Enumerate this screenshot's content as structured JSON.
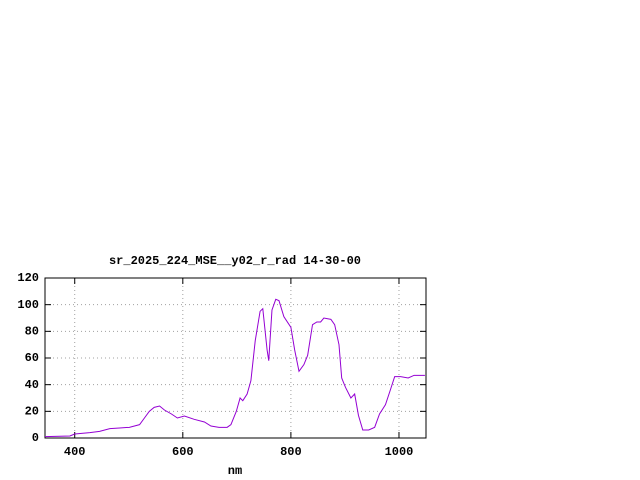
{
  "chart_data": {
    "type": "line",
    "title": "sr_2025_224_MSE__y02_r_rad 14-30-00",
    "x_label": "nm",
    "x": [
      345,
      391,
      400,
      428,
      446,
      465,
      483,
      501,
      520,
      529,
      538,
      547,
      557,
      566,
      579,
      590,
      603,
      621,
      640,
      652,
      667,
      682,
      689,
      699,
      706,
      711,
      719,
      726,
      734,
      743,
      748,
      756,
      759,
      765,
      772,
      778,
      787,
      800,
      807,
      815,
      824,
      831,
      840,
      848,
      855,
      861,
      874,
      881,
      889,
      894,
      901,
      911,
      918,
      925,
      933,
      944,
      955,
      964,
      975,
      984,
      992,
      1003,
      1017,
      1028,
      1048
    ],
    "series": [
      {
        "name": "sr_2025_224_MSE__y02_r_rad",
        "color": "#9400d3",
        "values": [
          1,
          1.5,
          3,
          4,
          5,
          7,
          7.5,
          8,
          10,
          15,
          20,
          23,
          24,
          21,
          18,
          15,
          16.5,
          14,
          12,
          9,
          8,
          8,
          10,
          20,
          30,
          28,
          33,
          43,
          73,
          95,
          97,
          66,
          58,
          96,
          104,
          103,
          91,
          83,
          66,
          50,
          55,
          62,
          85,
          87,
          87,
          90,
          89,
          85,
          70,
          45,
          38,
          30,
          33,
          17,
          6,
          6,
          8,
          18,
          25,
          36,
          46,
          46,
          45,
          47,
          47
        ]
      }
    ],
    "xlim": [
      345,
      1050
    ],
    "ylim": [
      0,
      120
    ],
    "xticks": [
      400,
      600,
      800,
      1000
    ],
    "yticks": [
      0,
      20,
      40,
      60,
      80,
      100,
      120
    ],
    "grid": true
  }
}
